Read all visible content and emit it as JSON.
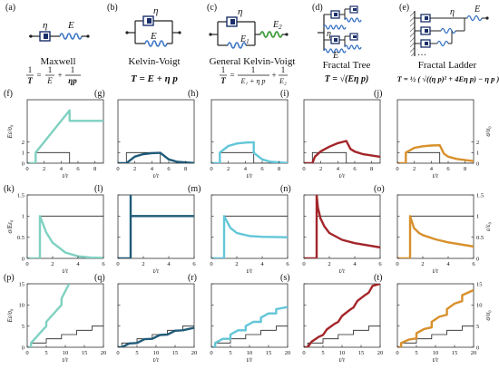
{
  "colors": {
    "maxwell": "#7fd1c1",
    "kelvin": "#1f5b78",
    "general": "#62c6d8",
    "fractal_tree": "#a3262a",
    "fractal_ladder": "#d8902c",
    "step": "#222222",
    "spring_blue": "#3a74c4",
    "spring_green": "#3f9b3a"
  },
  "models": [
    {
      "letter": "(a)",
      "name": "Maxwell",
      "sym1": "η",
      "sym2": "E"
    },
    {
      "letter": "(b)",
      "name": "Kelvin-Voigt",
      "sym1": "η",
      "sym2": "E"
    },
    {
      "letter": "(c)",
      "name": "General Kelvin-Voigt",
      "sym1": "η",
      "sym2": "E",
      "sub1": "1",
      "sub2": "2"
    },
    {
      "letter": "(d)",
      "name": "Fractal Tree",
      "sym1": "η",
      "sym2": "E"
    },
    {
      "letter": "(e)",
      "name": "Fractal Ladder",
      "sym1": "η",
      "sym2": "E",
      "dots": "…"
    }
  ],
  "equations": {
    "maxwell": {
      "lhs": "1",
      "lhs_den": "T",
      "t1": "1",
      "t1_den": "E",
      "t2": "1",
      "t2_den": "ηp",
      "plus": "+",
      "eq": "="
    },
    "kelvin": {
      "text": "T = E + η p"
    },
    "general": {
      "lhs": "1",
      "lhs_den": "T",
      "t1": "1",
      "t1_den": "E₁ + η p",
      "t2": "1",
      "t2_den": "E₂",
      "plus": "+",
      "eq": "="
    },
    "fractal_tree": {
      "text": "T = √(Eη p)"
    },
    "fractal_ladder": {
      "text": "T = ½ ( √((η p)² + 4Eη p) − η p )"
    }
  },
  "rows": [
    {
      "letters": [
        "(f)",
        "(g)",
        "(h)",
        "(i)",
        "(j)"
      ],
      "left_label": "Eε/σ₀",
      "right_label": "σ/σ₀",
      "xlabel": "t/τ",
      "xticks": [
        "0",
        "2",
        "4",
        "6",
        "8"
      ],
      "yticks": [
        "0",
        "1",
        "2"
      ],
      "right_ticks": [
        "0",
        "1",
        "2"
      ]
    },
    {
      "letters": [
        "(k)",
        "(l)",
        "(m)",
        "(n)",
        "(o)"
      ],
      "left_label": "σ/Eε₀",
      "right_label": "ε/ε₀",
      "xlabel": "t/τ",
      "xticks": [
        "0",
        "2",
        "4",
        "6"
      ],
      "yticks": [
        "0",
        "0.5",
        "1",
        "1.5"
      ],
      "right_ticks": [
        "0",
        "0.5",
        "1",
        "1.5"
      ]
    },
    {
      "letters": [
        "(p)",
        "(q)",
        "(r)",
        "(s)",
        "(t)"
      ],
      "left_label": "Eε/σ₀",
      "right_label": "σ/σ₀",
      "xlabel": "t/τ",
      "xticks": [
        "0",
        "5",
        "10",
        "15",
        "20"
      ],
      "yticks": [
        "0",
        "5",
        "10",
        "15"
      ],
      "right_ticks": [
        "0",
        "5",
        "10",
        "15"
      ]
    }
  ],
  "chart_data": [
    {
      "type": "line",
      "title": "",
      "xlabel": "t/τ",
      "ylabel": "Eε/σ₀",
      "xlim": [
        0,
        9
      ],
      "ylim": [
        0,
        6
      ],
      "input": {
        "name": "σ/σ₀",
        "x": [
          0,
          1,
          1,
          5,
          5,
          9
        ],
        "y": [
          0,
          0,
          1,
          1,
          0,
          0
        ]
      },
      "series": [
        {
          "model": "Maxwell",
          "x": [
            0,
            1,
            1,
            5,
            5,
            9
          ],
          "y": [
            0,
            0,
            1,
            5,
            4,
            4
          ]
        },
        {
          "model": "Kelvin-Voigt",
          "x": [
            0,
            1,
            2,
            3,
            4,
            5,
            6,
            7,
            9
          ],
          "y": [
            0,
            0,
            0.63,
            0.86,
            0.95,
            0.98,
            0.36,
            0.13,
            0.02
          ]
        },
        {
          "model": "General Kelvin-Voigt",
          "x": [
            0,
            1,
            1,
            2,
            3,
            4,
            5,
            5,
            6,
            7,
            9
          ],
          "y": [
            0,
            0,
            1,
            1.63,
            1.86,
            1.95,
            1.98,
            0.98,
            0.36,
            0.13,
            0.02
          ]
        },
        {
          "model": "Fractal Tree",
          "x": [
            0,
            1,
            1.3,
            2,
            3,
            4,
            5,
            5.5,
            6,
            7,
            9
          ],
          "y": [
            0,
            0,
            0.62,
            1.13,
            1.56,
            1.89,
            2.1,
            1.35,
            1.1,
            0.85,
            0.6
          ]
        },
        {
          "model": "Fractal Ladder",
          "x": [
            0,
            1,
            1,
            2,
            3,
            4,
            5,
            5.5,
            6,
            7,
            9
          ],
          "y": [
            0,
            0,
            1,
            1.45,
            1.6,
            1.67,
            1.7,
            0.9,
            0.62,
            0.4,
            0.2
          ]
        }
      ]
    },
    {
      "type": "line",
      "title": "",
      "xlabel": "t/τ",
      "ylabel": "σ/Eε₀",
      "xlim": [
        0,
        6
      ],
      "ylim": [
        0,
        1.5
      ],
      "input": {
        "name": "ε/ε₀",
        "x": [
          0,
          1,
          1,
          6
        ],
        "y": [
          0,
          0,
          1,
          1
        ]
      },
      "series": [
        {
          "model": "Maxwell",
          "x": [
            0,
            1,
            1,
            1.5,
            2,
            3,
            4,
            5,
            6
          ],
          "y": [
            0,
            0,
            1,
            0.61,
            0.37,
            0.14,
            0.05,
            0.02,
            0.01
          ]
        },
        {
          "model": "Kelvin-Voigt",
          "x": [
            0,
            1,
            1,
            1,
            6
          ],
          "y": [
            0,
            0,
            1.5,
            1,
            1
          ]
        },
        {
          "model": "General Kelvin-Voigt",
          "x": [
            0,
            1,
            1,
            1.5,
            2,
            3,
            4,
            6
          ],
          "y": [
            0,
            0,
            1,
            0.72,
            0.6,
            0.53,
            0.51,
            0.5
          ]
        },
        {
          "model": "Fractal Tree",
          "x": [
            0,
            1,
            1,
            1.1,
            1.3,
            1.6,
            2,
            3,
            4,
            6
          ],
          "y": [
            0,
            0,
            1.5,
            1.2,
            0.95,
            0.76,
            0.6,
            0.44,
            0.36,
            0.26
          ]
        },
        {
          "model": "Fractal Ladder",
          "x": [
            0,
            1,
            1,
            1.3,
            1.7,
            2,
            3,
            4,
            6
          ],
          "y": [
            0,
            0,
            1,
            0.72,
            0.6,
            0.55,
            0.45,
            0.38,
            0.28
          ]
        }
      ]
    },
    {
      "type": "line",
      "title": "",
      "xlabel": "t/τ",
      "ylabel": "Eε/σ₀",
      "xlim": [
        0,
        20
      ],
      "ylim": [
        0,
        15
      ],
      "input": {
        "name": "σ/σ₀",
        "x": [
          0,
          1,
          1,
          5,
          5,
          9,
          9,
          13,
          13,
          17,
          17,
          20
        ],
        "y": [
          0,
          0,
          1,
          1,
          2,
          2,
          3,
          3,
          4,
          4,
          5,
          5
        ]
      },
      "series": [
        {
          "model": "Maxwell",
          "x": [
            0,
            1,
            1,
            5,
            5,
            9,
            9,
            11
          ],
          "y": [
            0,
            0,
            1,
            5,
            6,
            10,
            11.5,
            15
          ]
        },
        {
          "model": "Kelvin-Voigt",
          "x": [
            0,
            1,
            3,
            5,
            7,
            9,
            11,
            13,
            15,
            17,
            20
          ],
          "y": [
            0,
            0,
            0.9,
            1,
            1.9,
            2,
            2.9,
            3,
            3.9,
            4,
            4.6
          ]
        },
        {
          "model": "General Kelvin-Voigt",
          "x": [
            0,
            1,
            1,
            3,
            5,
            5,
            7,
            9,
            9,
            11,
            13,
            13,
            15,
            17,
            17,
            20
          ],
          "y": [
            0,
            0,
            1,
            2,
            2,
            3,
            4,
            4,
            5,
            6,
            6,
            7,
            8,
            8,
            9,
            9.5
          ]
        },
        {
          "model": "Fractal Tree",
          "x": [
            0,
            1,
            2,
            4,
            5,
            6,
            8,
            9,
            10,
            12,
            13,
            14,
            16,
            17,
            18,
            20
          ],
          "y": [
            0,
            0,
            1.3,
            2.5,
            2.9,
            4.2,
            5.5,
            6,
            7.4,
            8.8,
            9.4,
            10.9,
            12.3,
            12.9,
            14.5,
            15
          ]
        },
        {
          "model": "Fractal Ladder",
          "x": [
            0,
            1,
            1,
            3,
            5,
            5,
            7,
            9,
            9,
            11,
            13,
            13,
            15,
            17,
            17,
            20
          ],
          "y": [
            0,
            0,
            1,
            1.8,
            2.1,
            3.3,
            4.3,
            4.7,
            6,
            7.2,
            7.7,
            9,
            10.3,
            10.9,
            12.3,
            13.5
          ]
        }
      ]
    }
  ]
}
